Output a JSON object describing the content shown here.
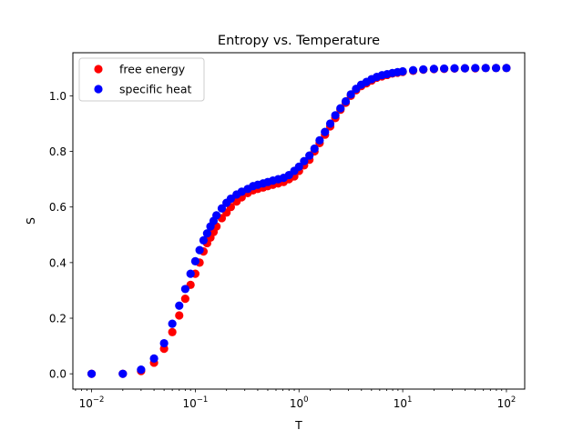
{
  "chart_data": {
    "type": "scatter",
    "title": "Entropy vs. Temperature",
    "xlabel": "T",
    "ylabel": "S",
    "xscale": "log",
    "xlim": [
      0.0066,
      150
    ],
    "ylim": [
      -0.055,
      1.155
    ],
    "xticks": [
      0.01,
      0.1,
      1,
      10,
      100
    ],
    "xtick_labels": [
      {
        "base": "10",
        "exp": "−2"
      },
      {
        "base": "10",
        "exp": "−1"
      },
      {
        "base": "10",
        "exp": "0"
      },
      {
        "base": "10",
        "exp": "1"
      },
      {
        "base": "10",
        "exp": "2"
      }
    ],
    "yticks": [
      0.0,
      0.2,
      0.4,
      0.6,
      0.8,
      1.0
    ],
    "ytick_labels": [
      "0.0",
      "0.2",
      "0.4",
      "0.6",
      "0.8",
      "1.0"
    ],
    "grid": false,
    "legend_position": "top-left",
    "series": [
      {
        "name": "free energy",
        "color": "#ff0000",
        "x": [
          0.01,
          0.02,
          0.03,
          0.04,
          0.05,
          0.06,
          0.07,
          0.08,
          0.09,
          0.1,
          0.11,
          0.12,
          0.13,
          0.14,
          0.15,
          0.16,
          0.18,
          0.2,
          0.22,
          0.25,
          0.28,
          0.32,
          0.36,
          0.4,
          0.45,
          0.5,
          0.56,
          0.63,
          0.71,
          0.8,
          0.9,
          1.0,
          1.12,
          1.26,
          1.41,
          1.58,
          1.78,
          2.0,
          2.24,
          2.51,
          2.82,
          3.16,
          3.55,
          3.98,
          4.47,
          5.01,
          5.62,
          6.31,
          7.08,
          7.94,
          8.91,
          10.0,
          12.6,
          15.8,
          20.0,
          25.1,
          31.6,
          39.8,
          50.1,
          63.1,
          79.4,
          100.0
        ],
        "y": [
          0.0,
          0.0,
          0.01,
          0.04,
          0.09,
          0.15,
          0.21,
          0.27,
          0.32,
          0.36,
          0.4,
          0.44,
          0.47,
          0.49,
          0.51,
          0.53,
          0.56,
          0.58,
          0.6,
          0.62,
          0.635,
          0.65,
          0.66,
          0.665,
          0.67,
          0.675,
          0.68,
          0.685,
          0.69,
          0.7,
          0.71,
          0.73,
          0.75,
          0.77,
          0.8,
          0.83,
          0.86,
          0.89,
          0.92,
          0.95,
          0.975,
          1.0,
          1.02,
          1.035,
          1.045,
          1.055,
          1.065,
          1.07,
          1.075,
          1.08,
          1.083,
          1.086,
          1.09,
          1.094,
          1.096,
          1.097,
          1.098,
          1.099,
          1.099,
          1.1,
          1.1,
          1.1
        ]
      },
      {
        "name": "specific heat",
        "color": "#0000ff",
        "x": [
          0.01,
          0.02,
          0.03,
          0.04,
          0.05,
          0.06,
          0.07,
          0.08,
          0.09,
          0.1,
          0.11,
          0.12,
          0.13,
          0.14,
          0.15,
          0.16,
          0.18,
          0.2,
          0.22,
          0.25,
          0.28,
          0.32,
          0.36,
          0.4,
          0.45,
          0.5,
          0.56,
          0.63,
          0.71,
          0.8,
          0.9,
          1.0,
          1.12,
          1.26,
          1.41,
          1.58,
          1.78,
          2.0,
          2.24,
          2.51,
          2.82,
          3.16,
          3.55,
          3.98,
          4.47,
          5.01,
          5.62,
          6.31,
          7.08,
          7.94,
          8.91,
          10.0,
          12.6,
          15.8,
          20.0,
          25.1,
          31.6,
          39.8,
          50.1,
          63.1,
          79.4,
          100.0
        ],
        "y": [
          0.0,
          0.0,
          0.015,
          0.055,
          0.11,
          0.18,
          0.245,
          0.305,
          0.36,
          0.405,
          0.445,
          0.48,
          0.505,
          0.53,
          0.55,
          0.57,
          0.595,
          0.615,
          0.63,
          0.645,
          0.655,
          0.665,
          0.675,
          0.68,
          0.685,
          0.69,
          0.695,
          0.7,
          0.705,
          0.715,
          0.73,
          0.745,
          0.765,
          0.785,
          0.81,
          0.84,
          0.87,
          0.9,
          0.93,
          0.955,
          0.98,
          1.005,
          1.025,
          1.04,
          1.05,
          1.06,
          1.068,
          1.074,
          1.078,
          1.082,
          1.085,
          1.088,
          1.092,
          1.095,
          1.097,
          1.098,
          1.099,
          1.099,
          1.1,
          1.1,
          1.1,
          1.1
        ]
      }
    ]
  }
}
